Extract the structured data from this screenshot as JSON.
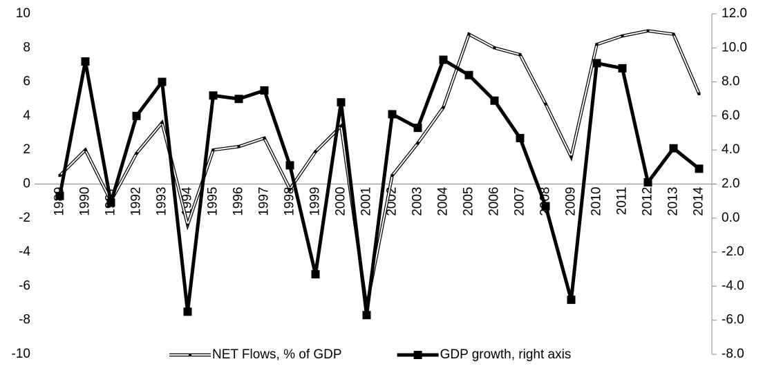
{
  "chart_data": {
    "type": "line",
    "categories": [
      "1989",
      "1990",
      "1991",
      "1992",
      "1993",
      "1994",
      "1995",
      "1996",
      "1997",
      "1998",
      "1999",
      "2000",
      "2001",
      "2002",
      "2003",
      "2004",
      "2005",
      "2006",
      "2007",
      "2008",
      "2009",
      "2010",
      "2011",
      "2012",
      "2013",
      "2014"
    ],
    "series": [
      {
        "name": "NET Flows, % of GDP",
        "color": "#ffffff",
        "values": [
          0.5,
          2.0,
          -1.0,
          1.8,
          3.6,
          -2.4,
          2.0,
          2.2,
          2.7,
          -0.3,
          1.9,
          3.4,
          -7.2,
          0.5,
          2.4,
          4.5,
          8.8,
          8.0,
          7.6,
          4.7,
          1.6,
          8.2,
          8.7,
          9.0,
          8.8,
          5.3
        ]
      },
      {
        "name": "GDP growth, right axis",
        "color": "#000000",
        "axis": "y2",
        "values": [
          1.3,
          9.2,
          0.9,
          6.0,
          8.0,
          -5.5,
          7.2,
          7.0,
          7.5,
          3.1,
          -3.3,
          6.8,
          -5.7,
          6.1,
          5.3,
          9.3,
          8.4,
          6.9,
          4.7,
          0.7,
          -4.8,
          9.1,
          8.8,
          2.1,
          4.1,
          2.9
        ]
      }
    ],
    "ylim": [
      -10,
      10
    ],
    "yticks": [
      -10,
      -8,
      -6,
      -4,
      -2,
      0,
      2,
      4,
      6,
      8,
      10
    ],
    "y2lim": [
      -8,
      12
    ],
    "y2ticks": [
      {
        "value": -8,
        "label": "-8.0"
      },
      {
        "value": -6,
        "label": "-6.0"
      },
      {
        "value": -4,
        "label": "-4.0"
      },
      {
        "value": -2,
        "label": "-2.0"
      },
      {
        "value": 0,
        "label": "0.0"
      },
      {
        "value": 2,
        "label": "2.0"
      },
      {
        "value": 4,
        "label": "4.0"
      },
      {
        "value": 6,
        "label": "6.0"
      },
      {
        "value": 8,
        "label": "8.0"
      },
      {
        "value": 10,
        "label": "10.0"
      },
      {
        "value": 12,
        "label": "12.0"
      }
    ],
    "legend": "bottom"
  }
}
